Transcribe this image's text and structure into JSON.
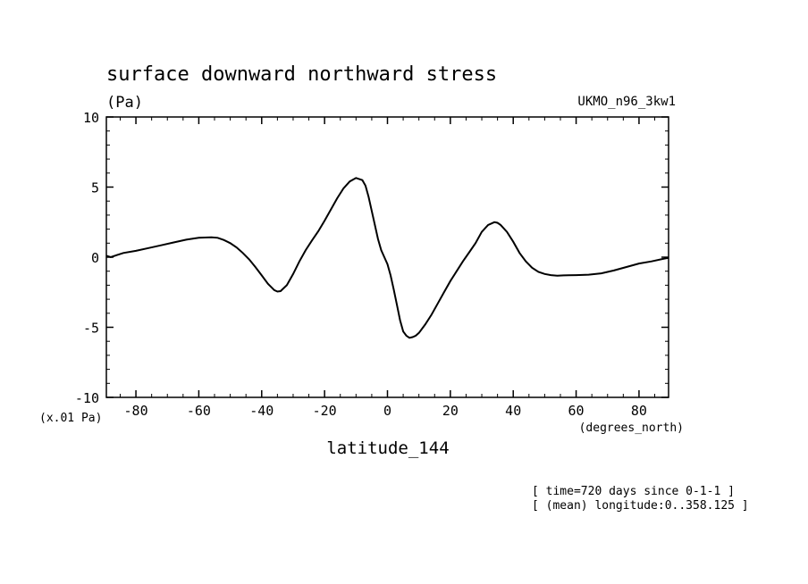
{
  "chart_data": {
    "type": "line",
    "title": "surface downward northward stress",
    "units_label": "(Pa)",
    "dataset_label": "UKMO_n96_3kw1",
    "scale_label": "(x.01 Pa)",
    "xlabel": "latitude_144",
    "xunits": "(degrees_north)",
    "footnotes": [
      "[ time=720 days since 0-1-1 ]",
      "[ (mean) longitude:0..358.125 ]"
    ],
    "xlim": [
      -89.4,
      89.4
    ],
    "ylim": [
      -10,
      10
    ],
    "xticks": [
      -80,
      -60,
      -40,
      -20,
      0,
      20,
      40,
      60,
      80
    ],
    "xtick_labels": [
      "-80",
      "-60",
      "-40",
      "-20",
      "0",
      "20",
      "40",
      "60",
      "80"
    ],
    "yticks": [
      -10,
      -5,
      0,
      5,
      10
    ],
    "ytick_labels": [
      "-10",
      "-5",
      "0",
      "5",
      "10"
    ],
    "grid": false,
    "series": [
      {
        "x": [
          -89.4,
          -88,
          -86,
          -84,
          -80,
          -76,
          -72,
          -68,
          -64,
          -60,
          -56,
          -54,
          -52,
          -50,
          -48,
          -46,
          -44,
          -42,
          -40,
          -38,
          -36,
          -35,
          -34,
          -32,
          -30,
          -28,
          -26,
          -24,
          -22,
          -20,
          -18,
          -16,
          -14,
          -12,
          -10,
          -8,
          -7,
          -6,
          -5,
          -4,
          -3,
          -2,
          -1,
          0,
          1,
          2,
          3,
          4,
          5,
          6,
          7,
          8,
          9,
          10,
          12,
          14,
          16,
          18,
          20,
          22,
          24,
          26,
          28,
          30,
          32,
          34,
          35,
          36,
          38,
          40,
          42,
          44,
          46,
          48,
          50,
          52,
          54,
          56,
          60,
          64,
          68,
          72,
          76,
          80,
          84,
          88,
          89.4
        ],
        "y": [
          0.1,
          0.0,
          0.15,
          0.3,
          0.45,
          0.65,
          0.85,
          1.05,
          1.25,
          1.38,
          1.42,
          1.38,
          1.22,
          1.0,
          0.7,
          0.3,
          -0.15,
          -0.7,
          -1.3,
          -1.9,
          -2.35,
          -2.45,
          -2.42,
          -2.0,
          -1.2,
          -0.3,
          0.5,
          1.2,
          1.85,
          2.6,
          3.4,
          4.2,
          4.9,
          5.4,
          5.65,
          5.5,
          5.1,
          4.3,
          3.3,
          2.3,
          1.3,
          0.5,
          0.0,
          -0.5,
          -1.3,
          -2.3,
          -3.4,
          -4.5,
          -5.3,
          -5.6,
          -5.75,
          -5.7,
          -5.6,
          -5.4,
          -4.8,
          -4.1,
          -3.3,
          -2.5,
          -1.7,
          -1.0,
          -0.3,
          0.35,
          1.0,
          1.8,
          2.3,
          2.5,
          2.45,
          2.3,
          1.8,
          1.1,
          0.3,
          -0.3,
          -0.75,
          -1.05,
          -1.2,
          -1.28,
          -1.32,
          -1.3,
          -1.28,
          -1.25,
          -1.15,
          -0.95,
          -0.7,
          -0.45,
          -0.3,
          -0.1,
          -0.05
        ]
      }
    ]
  }
}
